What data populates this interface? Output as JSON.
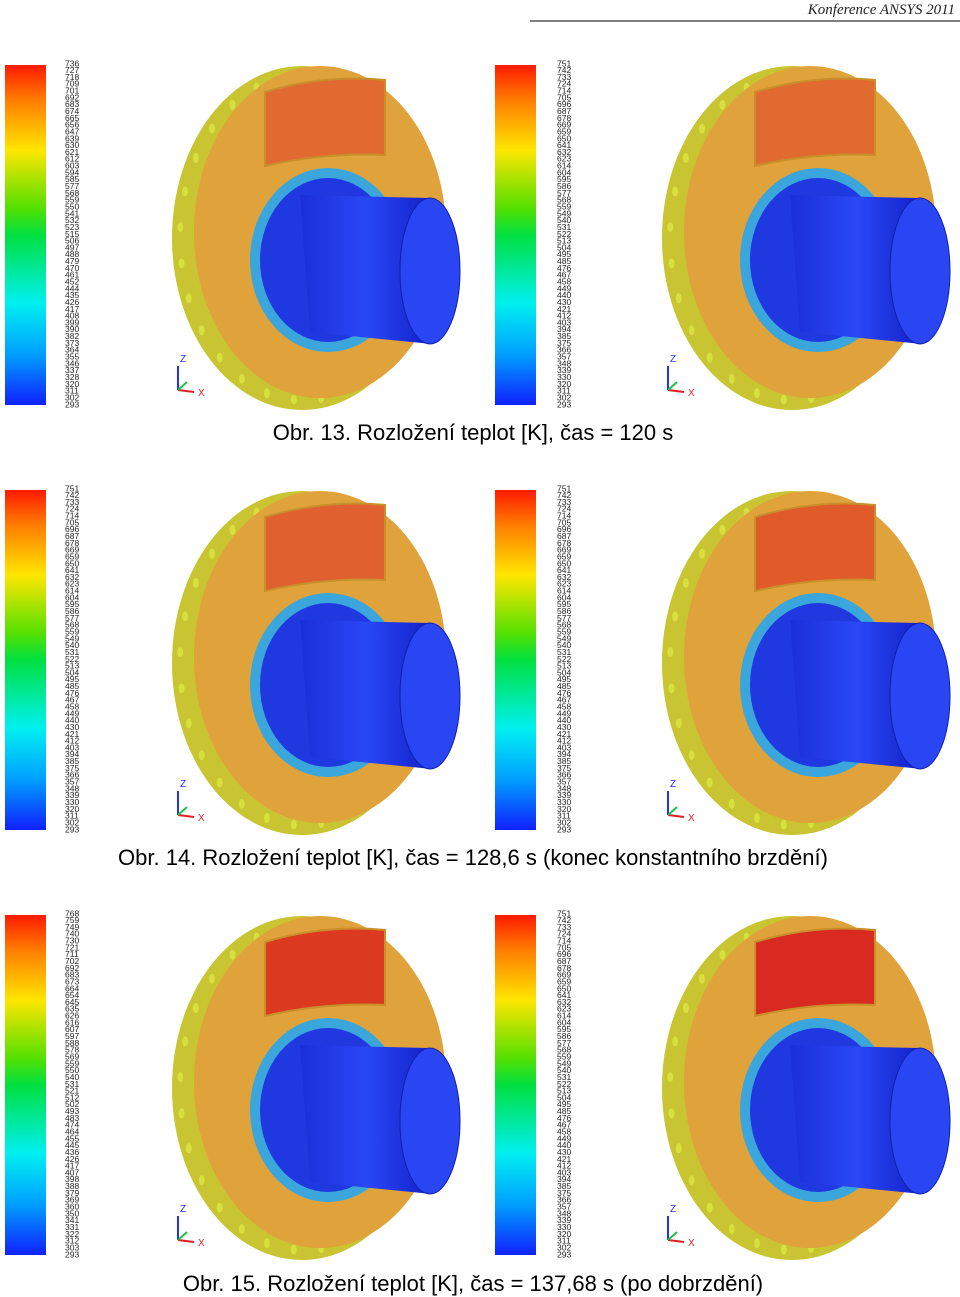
{
  "header": {
    "text": "Konference ANSYS 2011"
  },
  "triad_labels": [
    "Z",
    "X"
  ],
  "panels": [
    {
      "legend": [
        736,
        727,
        718,
        709,
        701,
        692,
        683,
        674,
        665,
        656,
        647,
        639,
        630,
        621,
        612,
        603,
        594,
        585,
        577,
        568,
        559,
        550,
        541,
        532,
        523,
        515,
        506,
        497,
        488,
        479,
        470,
        461,
        452,
        444,
        435,
        426,
        417,
        408,
        399,
        390,
        382,
        373,
        364,
        355,
        346,
        337,
        328,
        320,
        311,
        302,
        293
      ]
    },
    {
      "legend": [
        751,
        742,
        733,
        724,
        714,
        705,
        696,
        687,
        678,
        669,
        659,
        650,
        641,
        632,
        623,
        614,
        604,
        595,
        586,
        577,
        568,
        559,
        549,
        540,
        531,
        522,
        513,
        504,
        495,
        485,
        476,
        467,
        458,
        449,
        440,
        430,
        421,
        412,
        403,
        394,
        385,
        375,
        366,
        357,
        348,
        339,
        330,
        320,
        311,
        302,
        293
      ]
    },
    {
      "legend": [
        751,
        742,
        733,
        724,
        714,
        705,
        696,
        687,
        678,
        669,
        659,
        650,
        641,
        632,
        623,
        614,
        604,
        595,
        586,
        577,
        568,
        559,
        549,
        540,
        531,
        522,
        513,
        504,
        495,
        485,
        476,
        467,
        458,
        449,
        440,
        430,
        421,
        412,
        403,
        394,
        385,
        375,
        366,
        357,
        348,
        339,
        330,
        320,
        311,
        302,
        293
      ]
    },
    {
      "legend": [
        751,
        742,
        733,
        724,
        714,
        705,
        696,
        687,
        678,
        669,
        659,
        650,
        641,
        632,
        623,
        614,
        604,
        595,
        586,
        577,
        568,
        559,
        549,
        540,
        531,
        522,
        513,
        504,
        495,
        485,
        476,
        467,
        458,
        449,
        440,
        430,
        421,
        412,
        403,
        394,
        385,
        375,
        366,
        357,
        348,
        339,
        330,
        320,
        311,
        302,
        293
      ]
    },
    {
      "legend": [
        768,
        759,
        749,
        740,
        730,
        721,
        711,
        702,
        692,
        683,
        673,
        664,
        654,
        645,
        635,
        626,
        616,
        607,
        597,
        588,
        578,
        569,
        559,
        550,
        540,
        531,
        521,
        512,
        502,
        493,
        483,
        474,
        464,
        455,
        445,
        436,
        426,
        417,
        407,
        398,
        388,
        379,
        369,
        360,
        350,
        341,
        331,
        322,
        312,
        303,
        293
      ]
    },
    {
      "legend": [
        751,
        742,
        733,
        724,
        714,
        705,
        696,
        687,
        678,
        669,
        659,
        650,
        641,
        632,
        623,
        614,
        604,
        595,
        586,
        577,
        568,
        559,
        549,
        540,
        531,
        522,
        513,
        504,
        495,
        485,
        476,
        467,
        458,
        449,
        440,
        430,
        421,
        412,
        403,
        394,
        385,
        375,
        366,
        357,
        348,
        339,
        330,
        320,
        311,
        302,
        293
      ]
    }
  ],
  "captions": [
    "Obr. 13. Rozložení teplot [K], čas = 120 s",
    "Obr. 14. Rozložení teplot [K], čas = 128,6 s (konec konstantního brzdění)",
    "Obr. 15. Rozložení teplot [K], čas = 137,68 s (po dobrzdění)"
  ]
}
